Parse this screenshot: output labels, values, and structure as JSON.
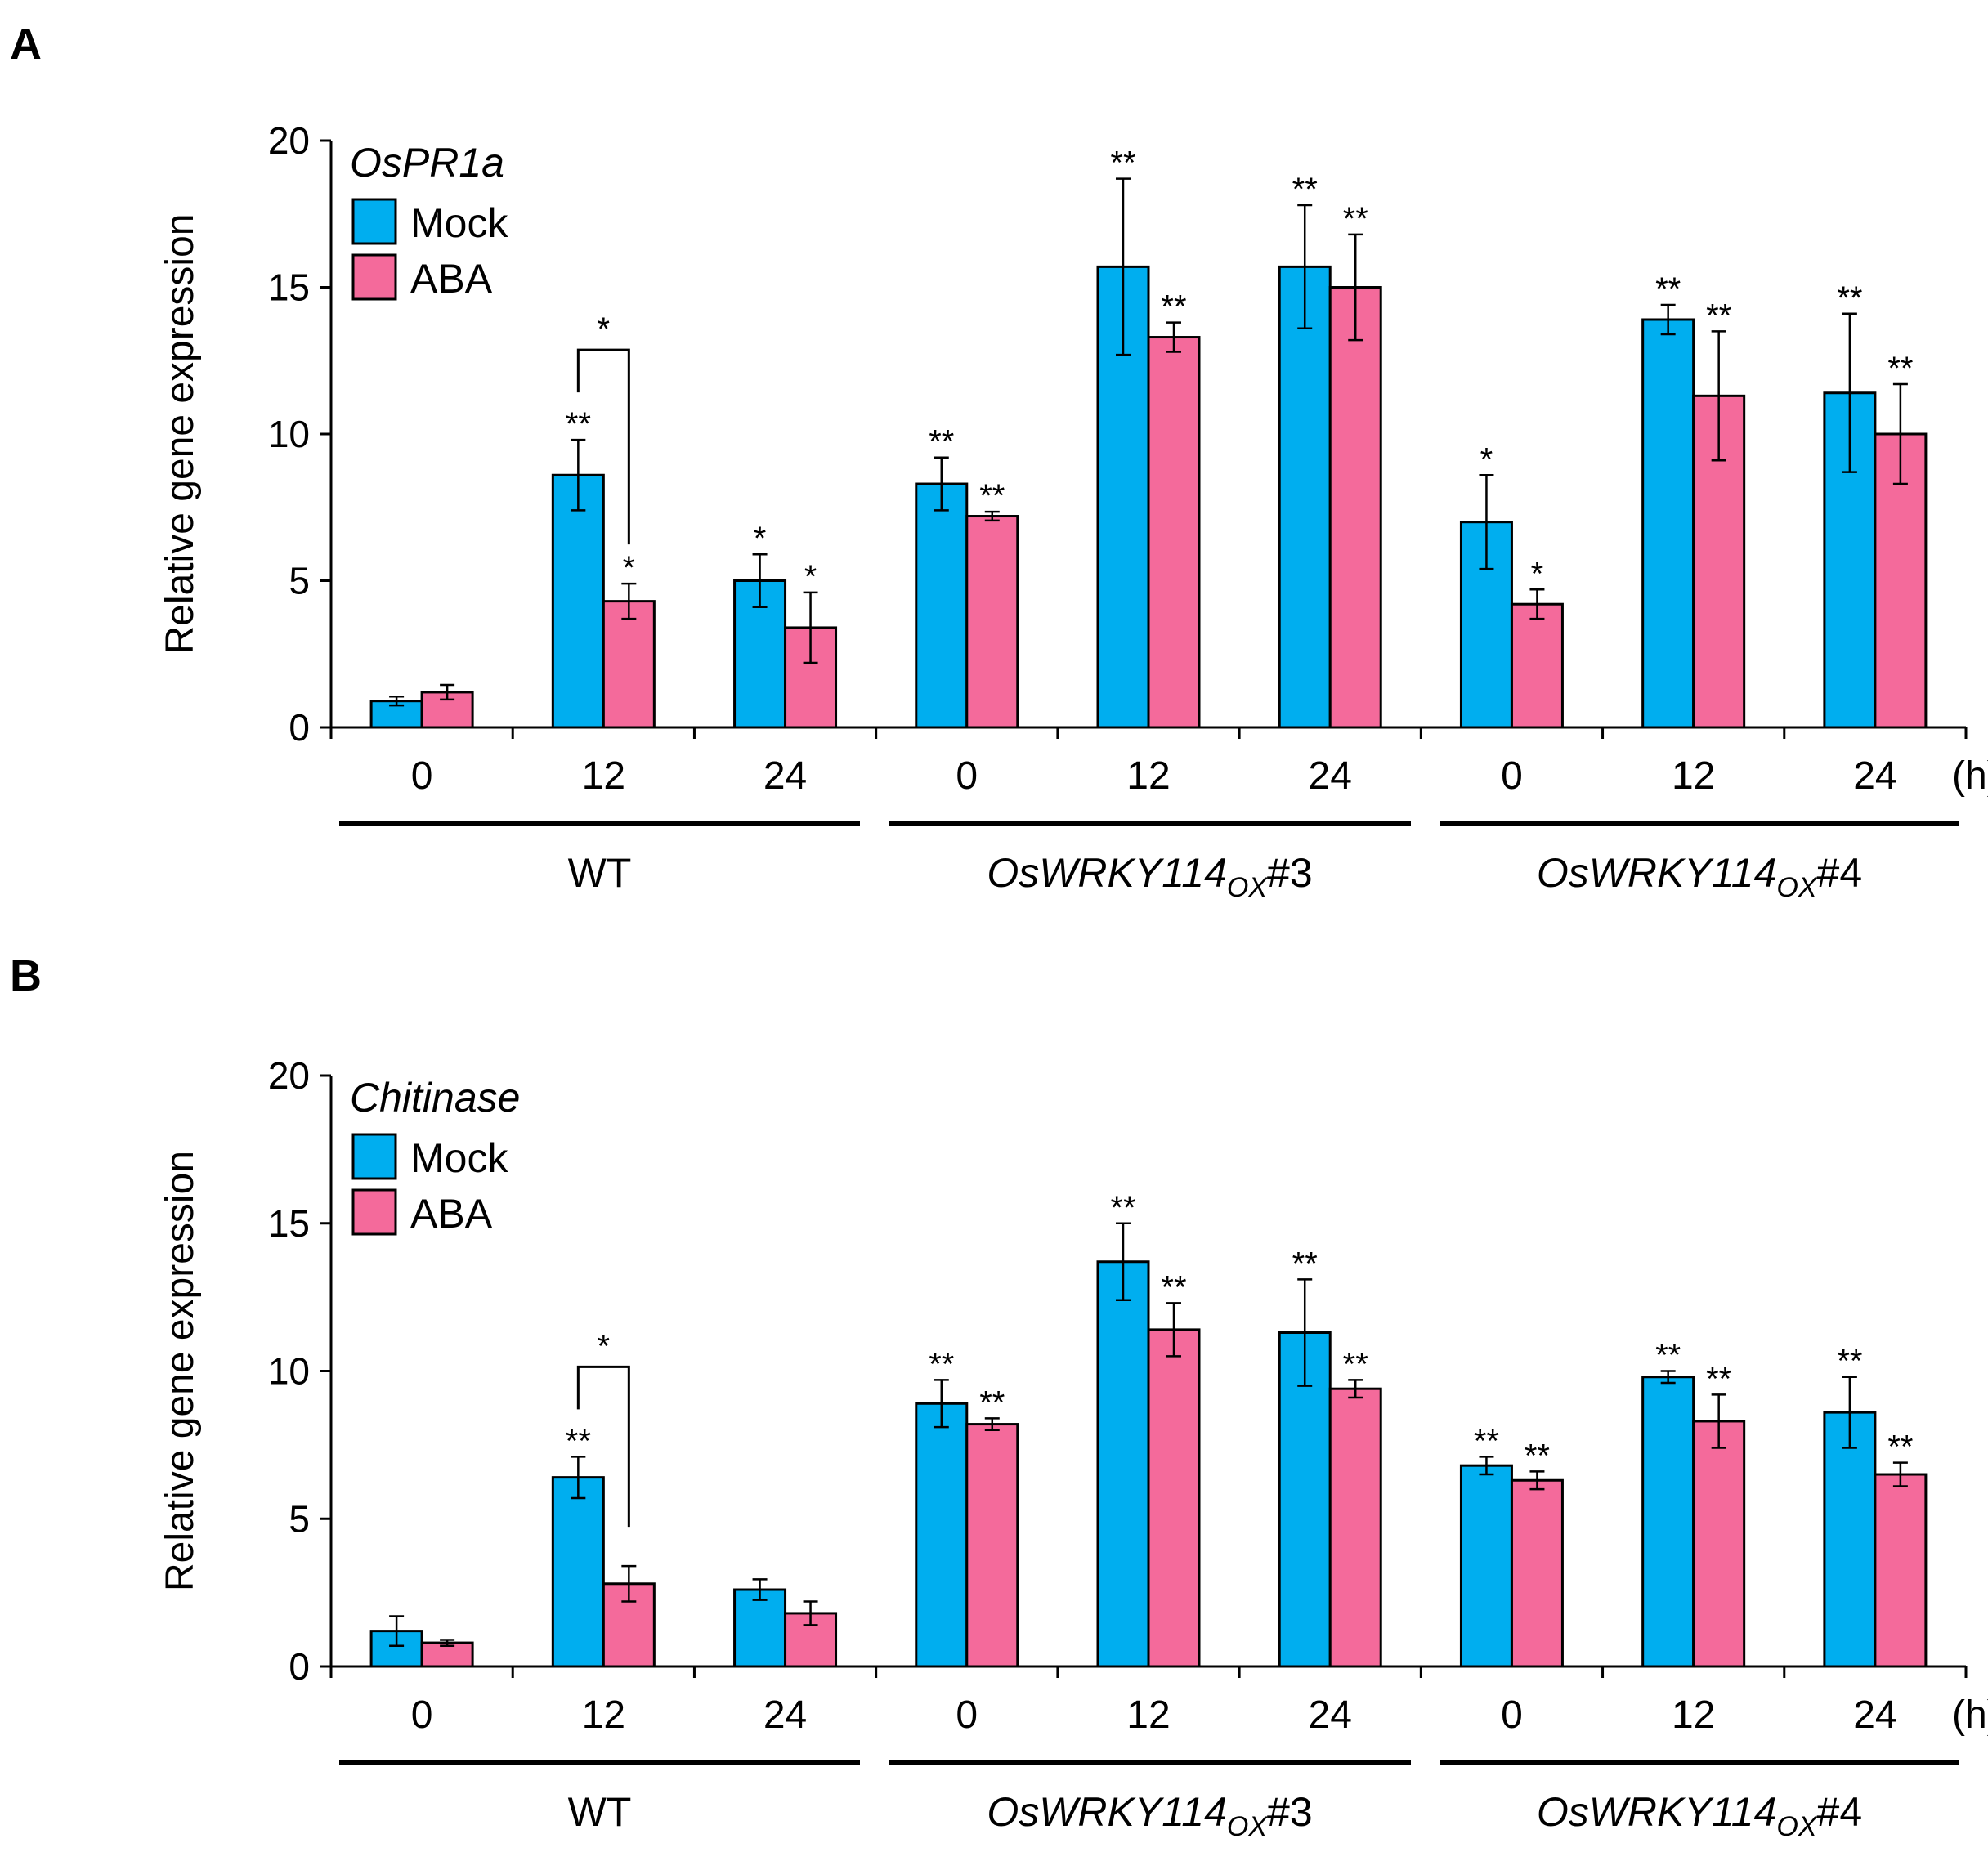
{
  "figure": {
    "time_unit": "(h)",
    "genotypes": [
      {
        "label": "WT",
        "italic": false
      },
      {
        "label_main": "OsWRKY114",
        "label_sub": "OX",
        "label_tail": "#3",
        "italic": true
      },
      {
        "label_main": "OsWRKY114",
        "label_sub": "OX",
        "label_tail": "#4",
        "italic": true
      }
    ],
    "colors": {
      "mock": "#00aeef",
      "aba": "#f46a9b",
      "axis": "#000000"
    }
  },
  "chart_data": [
    {
      "panel": "A",
      "type": "bar",
      "gene": "OsPR1a",
      "ylabel": "Relative gene expression",
      "ylim": [
        0,
        20
      ],
      "yticks": [
        0,
        5,
        10,
        15,
        20
      ],
      "categories": [
        "0",
        "12",
        "24",
        "0",
        "12",
        "24",
        "0",
        "12",
        "24"
      ],
      "legend": [
        "Mock",
        "ABA"
      ],
      "series": [
        {
          "name": "Mock",
          "values": [
            0.9,
            8.6,
            5.0,
            8.3,
            15.7,
            15.7,
            7.0,
            13.9,
            11.4
          ],
          "errors": [
            0.15,
            1.2,
            0.9,
            0.9,
            3.0,
            2.1,
            1.6,
            0.5,
            2.7
          ],
          "sig": [
            "",
            "**",
            "*",
            "**",
            "**",
            "**",
            "*",
            "**",
            "**"
          ]
        },
        {
          "name": "ABA",
          "values": [
            1.2,
            4.3,
            3.4,
            7.2,
            13.3,
            15.0,
            4.2,
            11.3,
            10.0
          ],
          "errors": [
            0.25,
            0.6,
            1.2,
            0.15,
            0.5,
            1.8,
            0.5,
            2.2,
            1.7
          ],
          "sig": [
            "",
            "*",
            "*",
            "**",
            "**",
            "**",
            "*",
            "**",
            "**"
          ]
        }
      ],
      "comparison": {
        "category_index": 1,
        "label": "*"
      }
    },
    {
      "panel": "B",
      "type": "bar",
      "gene": "Chitinase",
      "ylabel": "Relative gene expression",
      "ylim": [
        0,
        20
      ],
      "yticks": [
        0,
        5,
        10,
        15,
        20
      ],
      "categories": [
        "0",
        "12",
        "24",
        "0",
        "12",
        "24",
        "0",
        "12",
        "24"
      ],
      "legend": [
        "Mock",
        "ABA"
      ],
      "series": [
        {
          "name": "Mock",
          "values": [
            1.2,
            6.4,
            2.6,
            8.9,
            13.7,
            11.3,
            6.8,
            9.8,
            8.6
          ],
          "errors": [
            0.5,
            0.7,
            0.35,
            0.8,
            1.3,
            1.8,
            0.3,
            0.2,
            1.2
          ],
          "sig": [
            "",
            "**",
            "",
            "**",
            "**",
            "**",
            "**",
            "**",
            "**"
          ]
        },
        {
          "name": "ABA",
          "values": [
            0.8,
            2.8,
            1.8,
            8.2,
            11.4,
            9.4,
            6.3,
            8.3,
            6.5
          ],
          "errors": [
            0.1,
            0.6,
            0.4,
            0.2,
            0.9,
            0.3,
            0.3,
            0.9,
            0.4
          ],
          "sig": [
            "",
            "",
            "",
            "**",
            "**",
            "**",
            "**",
            "**",
            "**"
          ]
        }
      ],
      "comparison": {
        "category_index": 1,
        "label": "*"
      }
    }
  ]
}
